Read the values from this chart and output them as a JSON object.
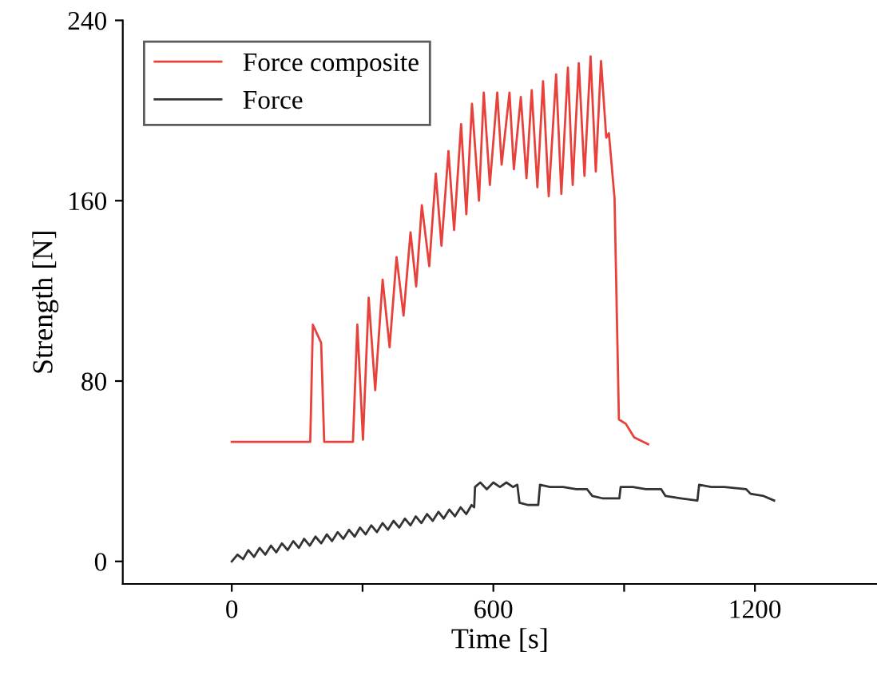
{
  "chart_data": {
    "type": "line",
    "xlabel": "Time [s]",
    "ylabel": "Strength [N]",
    "xlim": [
      -250,
      1480
    ],
    "ylim": [
      -10,
      240
    ],
    "xticks": [
      0,
      {
        "value": 300,
        "label": null
      },
      600,
      {
        "value": 900,
        "label": null
      },
      1200
    ],
    "yticks": [
      0,
      80,
      160,
      240
    ],
    "grid": false,
    "legend": "top left",
    "marker": "none",
    "line_style": "solid",
    "series": [
      {
        "name": "Force composite",
        "color": "#e8403a",
        "x": [
          0,
          180,
          186,
          205,
          212,
          278,
          288,
          301,
          314,
          329,
          346,
          362,
          378,
          394,
          410,
          423,
          436,
          453,
          468,
          481,
          497,
          510,
          526,
          538,
          551,
          567,
          578,
          592,
          609,
          619,
          637,
          647,
          663,
          676,
          688,
          701,
          714,
          727,
          744,
          756,
          771,
          782,
          796,
          809,
          823,
          835,
          847,
          859,
          865,
          878,
          888,
          904,
          923,
          955
        ],
        "values": [
          53,
          53,
          105,
          97,
          53,
          53,
          105,
          54,
          117,
          76,
          125,
          95,
          135,
          109,
          146,
          122,
          158,
          131,
          172,
          140,
          182,
          147,
          194,
          154,
          203,
          160,
          208,
          167,
          208,
          176,
          208,
          174,
          206,
          170,
          209,
          166,
          213,
          162,
          216,
          163,
          219,
          167,
          221,
          171,
          224,
          173,
          222,
          188,
          190,
          161,
          63,
          61,
          55,
          52
        ]
      },
      {
        "name": "Force",
        "color": "#333333",
        "x": [
          0,
          13,
          26,
          38,
          51,
          64,
          77,
          90,
          102,
          115,
          128,
          141,
          154,
          166,
          179,
          192,
          205,
          218,
          230,
          243,
          256,
          269,
          282,
          294,
          307,
          320,
          333,
          346,
          358,
          371,
          384,
          397,
          410,
          422,
          435,
          448,
          461,
          474,
          486,
          499,
          512,
          525,
          538,
          550,
          556,
          558,
          570,
          585,
          600,
          615,
          630,
          645,
          655,
          660,
          680,
          703,
          707,
          730,
          760,
          790,
          815,
          827,
          850,
          889,
          892,
          920,
          950,
          985,
          995,
          1030,
          1068,
          1072,
          1100,
          1130,
          1180,
          1190,
          1220,
          1244
        ],
        "values": [
          0,
          3,
          1,
          5,
          2,
          6,
          3,
          7,
          4,
          8,
          5,
          9,
          6,
          10,
          7,
          11,
          8,
          12,
          9,
          13,
          10,
          14,
          11,
          15,
          12,
          16,
          13,
          17,
          14,
          18,
          15,
          19,
          16,
          20,
          17,
          21,
          18,
          22,
          19,
          23,
          20,
          24,
          21,
          25,
          24,
          33,
          35,
          32,
          35,
          33,
          35,
          33,
          34,
          26,
          25,
          25,
          34,
          33,
          33,
          32,
          32,
          29,
          28,
          28,
          33,
          33,
          32,
          32,
          29,
          28,
          27,
          34,
          33,
          33,
          32,
          30,
          29,
          27
        ]
      }
    ]
  }
}
